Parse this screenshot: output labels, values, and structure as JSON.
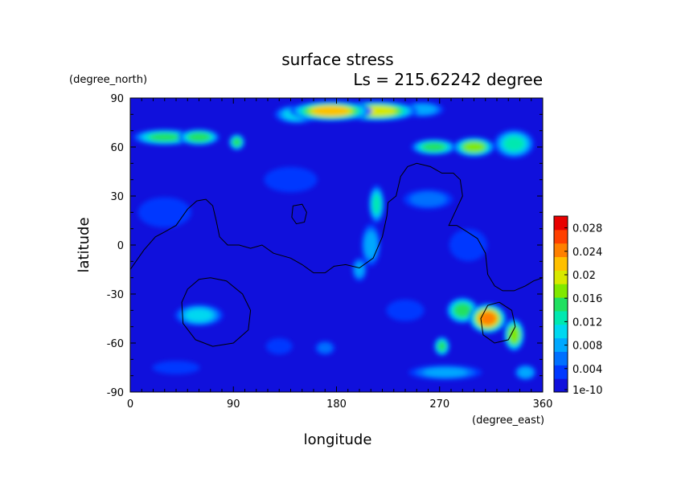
{
  "chart_data": {
    "type": "heatmap",
    "title": "surface stress",
    "subtitle": "Ls = 215.62242 degree",
    "xlabel": "longitude",
    "ylabel": "latitude",
    "x_unit": "(degree_east)",
    "y_unit": "(degree_north)",
    "xlim": [
      0,
      360
    ],
    "ylim": [
      -90,
      90
    ],
    "x_ticks": [
      "0",
      "90",
      "180",
      "270",
      "360"
    ],
    "y_ticks": [
      "90",
      "60",
      "30",
      "0",
      "-30",
      "-60",
      "-90"
    ],
    "colorbar": {
      "min": 0,
      "max": 0.03,
      "tick_labels": [
        "0.028",
        "0.024",
        "0.02",
        "0.016",
        "0.012",
        "0.008",
        "0.004",
        "1e-10"
      ],
      "tick_values": [
        0.028,
        0.024,
        0.02,
        0.016,
        0.012,
        0.008,
        0.004,
        0
      ],
      "colors": [
        "#1010dc",
        "#0038ff",
        "#0070ff",
        "#00a8ff",
        "#00d8f0",
        "#00e8b0",
        "#20e060",
        "#80e800",
        "#d8e800",
        "#ffc000",
        "#ff8000",
        "#ff4000",
        "#e80000"
      ]
    },
    "background_level": 0.002,
    "features": [
      {
        "lon": 175,
        "lat": 82,
        "value": 0.024,
        "r_lon": 35,
        "r_lat": 6
      },
      {
        "lon": 215,
        "lat": 82,
        "value": 0.022,
        "r_lon": 35,
        "r_lat": 6
      },
      {
        "lon": 145,
        "lat": 80,
        "value": 0.012,
        "r_lon": 20,
        "r_lat": 6
      },
      {
        "lon": 255,
        "lat": 83,
        "value": 0.01,
        "r_lon": 20,
        "r_lat": 5
      },
      {
        "lon": 30,
        "lat": 66,
        "value": 0.016,
        "r_lon": 28,
        "r_lat": 5
      },
      {
        "lon": 60,
        "lat": 66,
        "value": 0.018,
        "r_lon": 18,
        "r_lat": 5
      },
      {
        "lon": 93,
        "lat": 63,
        "value": 0.017,
        "r_lon": 7,
        "r_lat": 5
      },
      {
        "lon": 265,
        "lat": 60,
        "value": 0.017,
        "r_lon": 20,
        "r_lat": 5
      },
      {
        "lon": 300,
        "lat": 60,
        "value": 0.02,
        "r_lon": 18,
        "r_lat": 6
      },
      {
        "lon": 335,
        "lat": 62,
        "value": 0.014,
        "r_lon": 18,
        "r_lat": 9
      },
      {
        "lon": 215,
        "lat": 25,
        "value": 0.014,
        "r_lon": 7,
        "r_lat": 12
      },
      {
        "lon": 210,
        "lat": 0,
        "value": 0.01,
        "r_lon": 9,
        "r_lat": 14
      },
      {
        "lon": 200,
        "lat": -15,
        "value": 0.009,
        "r_lon": 7,
        "r_lat": 8
      },
      {
        "lon": 60,
        "lat": -43,
        "value": 0.012,
        "r_lon": 22,
        "r_lat": 7
      },
      {
        "lon": 312,
        "lat": -45,
        "value": 0.027,
        "r_lon": 16,
        "r_lat": 9
      },
      {
        "lon": 290,
        "lat": -40,
        "value": 0.018,
        "r_lon": 14,
        "r_lat": 8
      },
      {
        "lon": 335,
        "lat": -55,
        "value": 0.02,
        "r_lon": 9,
        "r_lat": 10
      },
      {
        "lon": 272,
        "lat": -62,
        "value": 0.016,
        "r_lon": 7,
        "r_lat": 6
      },
      {
        "lon": 275,
        "lat": -78,
        "value": 0.009,
        "r_lon": 35,
        "r_lat": 5
      },
      {
        "lon": 345,
        "lat": -78,
        "value": 0.011,
        "r_lon": 10,
        "r_lat": 5
      },
      {
        "lon": 170,
        "lat": -63,
        "value": 0.007,
        "r_lon": 10,
        "r_lat": 5
      },
      {
        "lon": 130,
        "lat": -62,
        "value": 0.006,
        "r_lon": 14,
        "r_lat": 6
      },
      {
        "lon": 260,
        "lat": 28,
        "value": 0.007,
        "r_lon": 25,
        "r_lat": 7
      },
      {
        "lon": 295,
        "lat": 0,
        "value": 0.006,
        "r_lon": 20,
        "r_lat": 12
      },
      {
        "lon": 30,
        "lat": 20,
        "value": 0.005,
        "r_lon": 30,
        "r_lat": 12
      },
      {
        "lon": 140,
        "lat": 40,
        "value": 0.005,
        "r_lon": 30,
        "r_lat": 10
      },
      {
        "lon": 240,
        "lat": -40,
        "value": 0.006,
        "r_lon": 20,
        "r_lat": 8
      },
      {
        "lon": 40,
        "lat": -75,
        "value": 0.006,
        "r_lon": 25,
        "r_lat": 5
      }
    ],
    "contours": [
      [
        [
          0,
          -15
        ],
        [
          12,
          -3
        ],
        [
          22,
          5
        ],
        [
          30,
          8
        ],
        [
          40,
          12
        ],
        [
          50,
          22
        ],
        [
          58,
          27
        ],
        [
          66,
          28
        ],
        [
          72,
          24
        ],
        [
          75,
          15
        ],
        [
          78,
          5
        ],
        [
          85,
          0
        ],
        [
          95,
          0
        ],
        [
          105,
          -2
        ],
        [
          115,
          0
        ],
        [
          125,
          -5
        ],
        [
          140,
          -8
        ],
        [
          150,
          -12
        ],
        [
          160,
          -17
        ],
        [
          170,
          -17
        ],
        [
          178,
          -13
        ],
        [
          188,
          -12
        ],
        [
          200,
          -14
        ],
        [
          212,
          -8
        ],
        [
          220,
          5
        ],
        [
          224,
          18
        ],
        [
          225,
          26
        ],
        [
          232,
          30
        ],
        [
          236,
          42
        ],
        [
          242,
          48
        ],
        [
          250,
          50
        ],
        [
          262,
          48
        ],
        [
          272,
          44
        ],
        [
          282,
          44
        ],
        [
          288,
          40
        ],
        [
          290,
          30
        ],
        [
          282,
          18
        ],
        [
          278,
          12
        ],
        [
          285,
          12
        ],
        [
          292,
          9
        ],
        [
          303,
          4
        ],
        [
          310,
          -5
        ],
        [
          312,
          -18
        ],
        [
          318,
          -25
        ],
        [
          325,
          -28
        ],
        [
          335,
          -28
        ],
        [
          345,
          -25
        ],
        [
          352,
          -22
        ],
        [
          360,
          -20
        ]
      ],
      [
        [
          70,
          -20
        ],
        [
          84,
          -22
        ],
        [
          98,
          -30
        ],
        [
          105,
          -40
        ],
        [
          103,
          -52
        ],
        [
          90,
          -60
        ],
        [
          72,
          -62
        ],
        [
          57,
          -58
        ],
        [
          46,
          -48
        ],
        [
          45,
          -35
        ],
        [
          50,
          -27
        ],
        [
          60,
          -21
        ],
        [
          70,
          -20
        ]
      ],
      [
        [
          142,
          24
        ],
        [
          150,
          25
        ],
        [
          154,
          20
        ],
        [
          152,
          14
        ],
        [
          145,
          13
        ],
        [
          141,
          17
        ],
        [
          142,
          24
        ]
      ],
      [
        [
          322,
          -35
        ],
        [
          333,
          -40
        ],
        [
          336,
          -50
        ],
        [
          330,
          -58
        ],
        [
          318,
          -60
        ],
        [
          308,
          -55
        ],
        [
          306,
          -45
        ],
        [
          312,
          -37
        ],
        [
          322,
          -35
        ]
      ]
    ]
  }
}
